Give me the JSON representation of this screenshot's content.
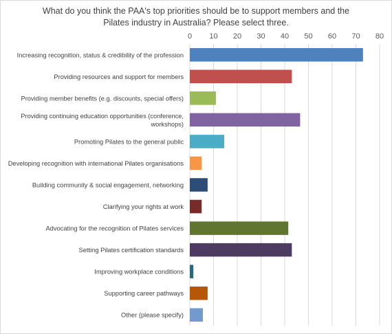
{
  "chart_data": {
    "type": "bar",
    "orientation": "horizontal",
    "title_lines": [
      "What do you think the PAA's top priorities should be to support members and the",
      "Pilates industry in Australia? Please select three."
    ],
    "xlim": [
      0,
      80
    ],
    "x_ticks": [
      0,
      10,
      20,
      30,
      40,
      50,
      60,
      70,
      80
    ],
    "grid": true,
    "legend": "none",
    "categories": [
      [
        "Increasing recognition, status & credibility of the profession"
      ],
      [
        "Providing resources and support for members"
      ],
      [
        "Providing member benefits (e.g. discounts, special offers)"
      ],
      [
        "Providing continuing education opportunities (conference,",
        "workshops)"
      ],
      [
        "Promoting Pilates to the general public"
      ],
      [
        "Developing recognition with international Pilates organisations"
      ],
      [
        "Building community & social engagement, networking"
      ],
      [
        "Clarifying your rights at work"
      ],
      [
        "Advocating for the recognition of Pilates services"
      ],
      [
        "Setting Pilates certification standards"
      ],
      [
        "Improving workplace conditions"
      ],
      [
        "Supporting career pathways"
      ],
      [
        "Other (please specify)"
      ]
    ],
    "values": [
      73,
      43,
      11,
      46.5,
      14.5,
      5,
      7.5,
      5,
      41.5,
      43,
      1.5,
      7.5,
      5.5
    ],
    "colors": [
      "#4f81bd",
      "#c0504d",
      "#9bbb59",
      "#8064a2",
      "#4bacc6",
      "#f79646",
      "#2c4d75",
      "#772c2a",
      "#5f7530",
      "#4d3b62",
      "#276a7c",
      "#b65708",
      "#729aca"
    ]
  }
}
